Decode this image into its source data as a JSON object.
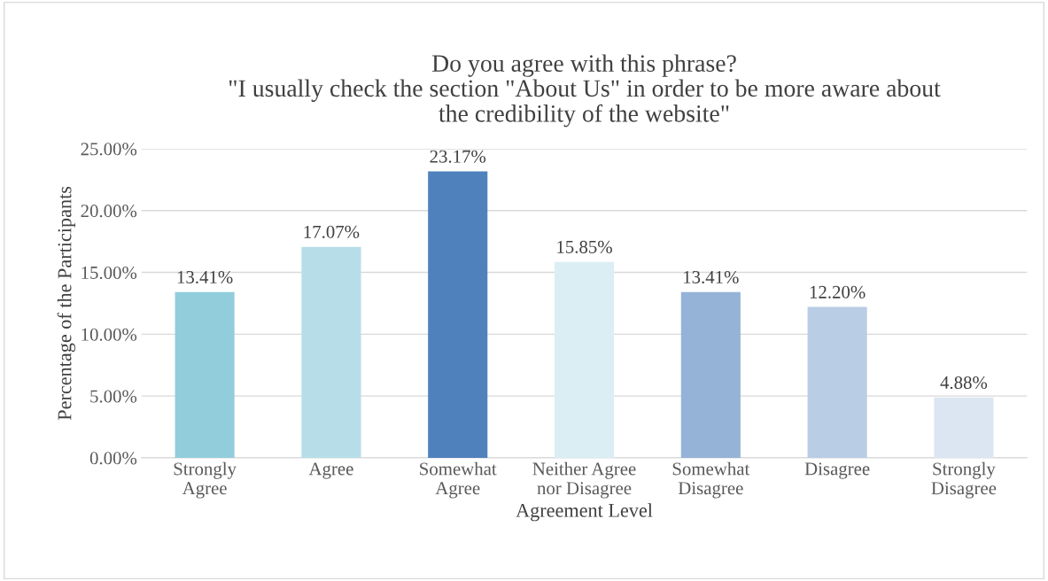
{
  "chart_data": {
    "type": "bar",
    "title": "Do you agree with this phrase?\n\"I usually check the section \"About Us\" in order to be more aware about\nthe credibility of the website\"",
    "xlabel": "Agreement Level",
    "ylabel": "Percentage of the Participants",
    "categories": [
      "Strongly\nAgree",
      "Agree",
      "Somewhat\nAgree",
      "Neither Agree\nnor Disagree",
      "Somewhat\nDisagree",
      "Disagree",
      "Strongly\nDisagree"
    ],
    "values": [
      13.41,
      17.07,
      23.17,
      15.85,
      13.41,
      12.2,
      4.88
    ],
    "value_labels": [
      "13.41%",
      "17.07%",
      "23.17%",
      "15.85%",
      "13.41%",
      "12.20%",
      "4.88%"
    ],
    "colors": [
      "#92cddc",
      "#b7dee8",
      "#4f81bd",
      "#daeef3",
      "#95b3d7",
      "#b9cde5",
      "#dce6f2"
    ],
    "ylim": [
      0,
      25
    ],
    "yticks": [
      {
        "value": 0,
        "label": "0.00%"
      },
      {
        "value": 5,
        "label": "5.00%"
      },
      {
        "value": 10,
        "label": "10.00%"
      },
      {
        "value": 15,
        "label": "15.00%"
      },
      {
        "value": 20,
        "label": "20.00%"
      },
      {
        "value": 25,
        "label": "25.00%"
      }
    ],
    "grid": "y",
    "legend": false
  }
}
